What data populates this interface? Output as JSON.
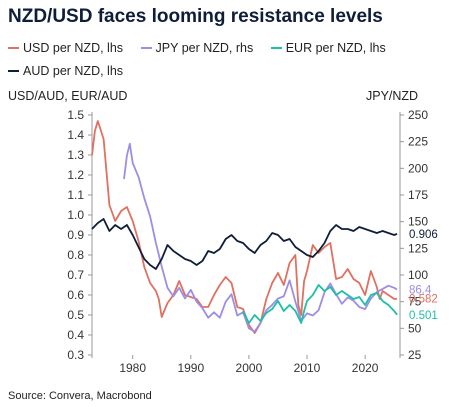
{
  "title": "NZD/USD faces looming resistance levels",
  "source": "Source: Convera, Macrobond",
  "legend": [
    {
      "label": "USD per NZD, lhs",
      "color": "#e07060"
    },
    {
      "label": "JPY per NZD, rhs",
      "color": "#9b8ee6"
    },
    {
      "label": "EUR per NZD, lhs",
      "color": "#1fbfa3"
    },
    {
      "label": "AUD per NZD, lhs",
      "color": "#0f1e38"
    }
  ],
  "chart_data": {
    "type": "line",
    "left_axis": {
      "title": "USD/AUD, EUR/AUD",
      "range": [
        0.3,
        1.5
      ],
      "ticks": [
        "0.3",
        "0.4",
        "0.5",
        "0.6",
        "0.7",
        "0.8",
        "0.9",
        "1.0",
        "1.1",
        "1.2",
        "1.3",
        "1.4",
        "1.5"
      ]
    },
    "right_axis": {
      "title": "JPY/NZD",
      "range": [
        25,
        250
      ],
      "ticks": [
        "25",
        "50",
        "75",
        "100",
        "125",
        "150",
        "175",
        "200",
        "225",
        "250"
      ]
    },
    "x_axis": {
      "range": [
        1973,
        2026
      ],
      "ticks": [
        "1980",
        "1990",
        "2000",
        "2010",
        "2020"
      ]
    },
    "series": [
      {
        "name": "USD per NZD, lhs",
        "axis": "left",
        "color": "#e07060",
        "end_label": "0.582",
        "points": [
          [
            1973,
            1.3
          ],
          [
            1973.5,
            1.42
          ],
          [
            1974,
            1.47
          ],
          [
            1975,
            1.38
          ],
          [
            1976,
            1.05
          ],
          [
            1977,
            0.97
          ],
          [
            1978,
            1.02
          ],
          [
            1979,
            1.04
          ],
          [
            1980,
            0.97
          ],
          [
            1981,
            0.87
          ],
          [
            1982,
            0.74
          ],
          [
            1983,
            0.66
          ],
          [
            1984,
            0.62
          ],
          [
            1984.5,
            0.58
          ],
          [
            1985,
            0.49
          ],
          [
            1986,
            0.56
          ],
          [
            1987,
            0.6
          ],
          [
            1988,
            0.67
          ],
          [
            1989,
            0.6
          ],
          [
            1990,
            0.59
          ],
          [
            1991,
            0.58
          ],
          [
            1992,
            0.54
          ],
          [
            1993,
            0.54
          ],
          [
            1994,
            0.6
          ],
          [
            1995,
            0.65
          ],
          [
            1996,
            0.69
          ],
          [
            1997,
            0.66
          ],
          [
            1998,
            0.54
          ],
          [
            1999,
            0.53
          ],
          [
            2000,
            0.45
          ],
          [
            2001,
            0.41
          ],
          [
            2002,
            0.46
          ],
          [
            2003,
            0.58
          ],
          [
            2004,
            0.66
          ],
          [
            2005,
            0.71
          ],
          [
            2006,
            0.65
          ],
          [
            2007,
            0.76
          ],
          [
            2008,
            0.8
          ],
          [
            2008.5,
            0.55
          ],
          [
            2009,
            0.5
          ],
          [
            2009.5,
            0.67
          ],
          [
            2010,
            0.72
          ],
          [
            2011,
            0.85
          ],
          [
            2012,
            0.81
          ],
          [
            2013,
            0.84
          ],
          [
            2014,
            0.86
          ],
          [
            2015,
            0.68
          ],
          [
            2016,
            0.69
          ],
          [
            2017,
            0.73
          ],
          [
            2018,
            0.68
          ],
          [
            2019,
            0.66
          ],
          [
            2020,
            0.6
          ],
          [
            2021,
            0.72
          ],
          [
            2022,
            0.64
          ],
          [
            2022.5,
            0.58
          ],
          [
            2023,
            0.62
          ],
          [
            2024,
            0.6
          ],
          [
            2025,
            0.58
          ],
          [
            2025.5,
            0.582
          ]
        ]
      },
      {
        "name": "JPY per NZD, rhs",
        "axis": "right",
        "color": "#9b8ee6",
        "end_label": "86.4",
        "points": [
          [
            1978.5,
            190
          ],
          [
            1979,
            212
          ],
          [
            1979.5,
            223
          ],
          [
            1980,
            205
          ],
          [
            1981,
            192
          ],
          [
            1982,
            172
          ],
          [
            1983,
            155
          ],
          [
            1984,
            130
          ],
          [
            1985,
            108
          ],
          [
            1986,
            88
          ],
          [
            1987,
            80
          ],
          [
            1988,
            88
          ],
          [
            1989,
            78
          ],
          [
            1990,
            86
          ],
          [
            1991,
            75
          ],
          [
            1992,
            69
          ],
          [
            1993,
            60
          ],
          [
            1994,
            65
          ],
          [
            1995,
            60
          ],
          [
            1996,
            75
          ],
          [
            1997,
            82
          ],
          [
            1998,
            62
          ],
          [
            1999,
            65
          ],
          [
            2000,
            50
          ],
          [
            2001,
            47
          ],
          [
            2002,
            55
          ],
          [
            2003,
            67
          ],
          [
            2004,
            72
          ],
          [
            2005,
            78
          ],
          [
            2006,
            80
          ],
          [
            2007,
            95
          ],
          [
            2008,
            75
          ],
          [
            2009,
            57
          ],
          [
            2010,
            64
          ],
          [
            2011,
            62
          ],
          [
            2012,
            67
          ],
          [
            2013,
            84
          ],
          [
            2014,
            92
          ],
          [
            2015,
            82
          ],
          [
            2016,
            73
          ],
          [
            2017,
            79
          ],
          [
            2018,
            76
          ],
          [
            2019,
            70
          ],
          [
            2020,
            68
          ],
          [
            2021,
            78
          ],
          [
            2022,
            84
          ],
          [
            2023,
            87
          ],
          [
            2024,
            90
          ],
          [
            2025,
            88
          ],
          [
            2025.5,
            86.4
          ]
        ]
      },
      {
        "name": "EUR per NZD, lhs",
        "axis": "left",
        "color": "#1fbfa3",
        "end_label": "0.501",
        "points": [
          [
            1999,
            0.52
          ],
          [
            2000,
            0.46
          ],
          [
            2001,
            0.5
          ],
          [
            2002,
            0.47
          ],
          [
            2003,
            0.51
          ],
          [
            2004,
            0.53
          ],
          [
            2005,
            0.57
          ],
          [
            2006,
            0.52
          ],
          [
            2007,
            0.55
          ],
          [
            2008,
            0.52
          ],
          [
            2009,
            0.46
          ],
          [
            2009.5,
            0.52
          ],
          [
            2010,
            0.57
          ],
          [
            2011,
            0.6
          ],
          [
            2012,
            0.65
          ],
          [
            2013,
            0.62
          ],
          [
            2014,
            0.64
          ],
          [
            2015,
            0.6
          ],
          [
            2016,
            0.62
          ],
          [
            2017,
            0.6
          ],
          [
            2018,
            0.58
          ],
          [
            2019,
            0.59
          ],
          [
            2020,
            0.55
          ],
          [
            2021,
            0.6
          ],
          [
            2022,
            0.61
          ],
          [
            2023,
            0.57
          ],
          [
            2024,
            0.55
          ],
          [
            2025,
            0.52
          ],
          [
            2025.5,
            0.501
          ]
        ]
      },
      {
        "name": "AUD per NZD, lhs",
        "axis": "left",
        "color": "#0f1e38",
        "end_label": "0.906",
        "points": [
          [
            1973,
            0.93
          ],
          [
            1974,
            0.96
          ],
          [
            1975,
            0.98
          ],
          [
            1976,
            0.92
          ],
          [
            1977,
            0.95
          ],
          [
            1978,
            0.93
          ],
          [
            1979,
            0.95
          ],
          [
            1980,
            0.9
          ],
          [
            1981,
            0.84
          ],
          [
            1982,
            0.78
          ],
          [
            1983,
            0.75
          ],
          [
            1984,
            0.73
          ],
          [
            1985,
            0.78
          ],
          [
            1986,
            0.85
          ],
          [
            1987,
            0.82
          ],
          [
            1988,
            0.8
          ],
          [
            1989,
            0.78
          ],
          [
            1990,
            0.77
          ],
          [
            1991,
            0.75
          ],
          [
            1992,
            0.77
          ],
          [
            1993,
            0.82
          ],
          [
            1994,
            0.81
          ],
          [
            1995,
            0.83
          ],
          [
            1996,
            0.88
          ],
          [
            1997,
            0.9
          ],
          [
            1998,
            0.87
          ],
          [
            1999,
            0.86
          ],
          [
            2000,
            0.83
          ],
          [
            2001,
            0.81
          ],
          [
            2002,
            0.85
          ],
          [
            2003,
            0.87
          ],
          [
            2004,
            0.91
          ],
          [
            2005,
            0.9
          ],
          [
            2006,
            0.87
          ],
          [
            2007,
            0.88
          ],
          [
            2008,
            0.84
          ],
          [
            2009,
            0.82
          ],
          [
            2010,
            0.8
          ],
          [
            2011,
            0.79
          ],
          [
            2012,
            0.82
          ],
          [
            2013,
            0.86
          ],
          [
            2014,
            0.92
          ],
          [
            2015,
            0.95
          ],
          [
            2016,
            0.93
          ],
          [
            2017,
            0.93
          ],
          [
            2018,
            0.92
          ],
          [
            2019,
            0.94
          ],
          [
            2020,
            0.93
          ],
          [
            2021,
            0.92
          ],
          [
            2022,
            0.91
          ],
          [
            2023,
            0.92
          ],
          [
            2024,
            0.91
          ],
          [
            2025,
            0.9
          ],
          [
            2025.5,
            0.906
          ]
        ]
      }
    ]
  }
}
